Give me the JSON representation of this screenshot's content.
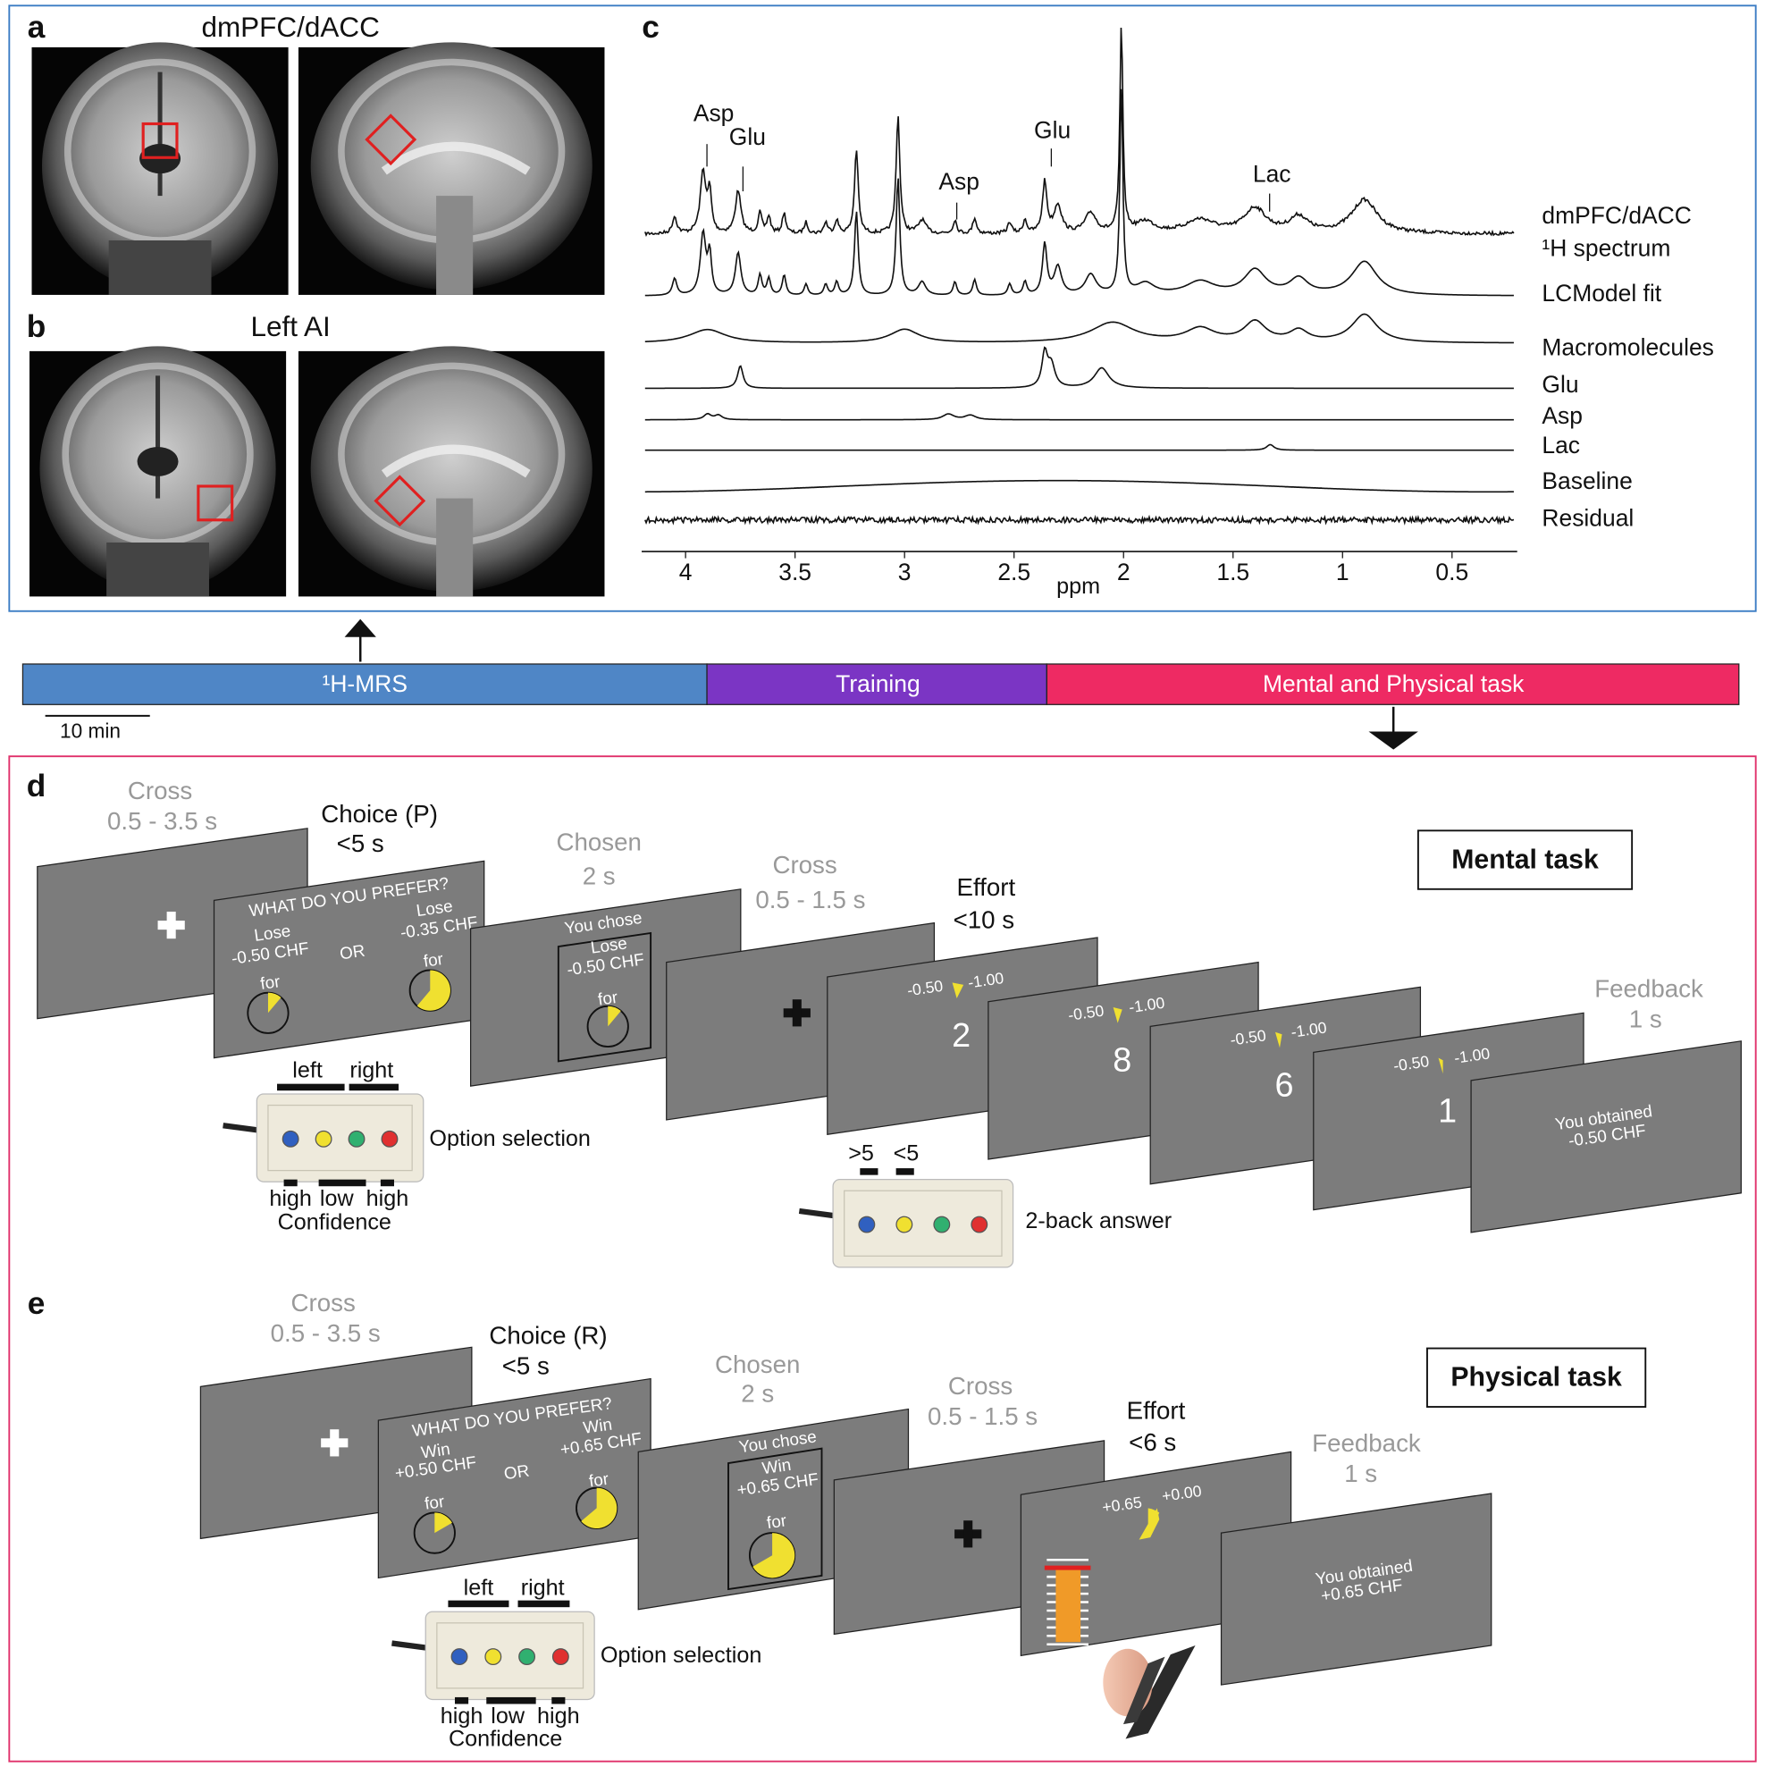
{
  "panel_a": {
    "letter": "a",
    "title": "dmPFC/dACC"
  },
  "panel_b": {
    "letter": "b",
    "title": "Left AI"
  },
  "panel_c": {
    "letter": "c",
    "peak_labels": [
      "Asp",
      "Glu",
      "Asp",
      "Glu",
      "Lac"
    ],
    "trace_labels": [
      "dmPFC/dACC",
      "¹H spectrum",
      "LCModel fit",
      "Macromolecules",
      "Glu",
      "Asp",
      "Lac",
      "Baseline",
      "Residual"
    ],
    "xticks": [
      4,
      3.5,
      3,
      2.5,
      2,
      1.5,
      1,
      0.5
    ],
    "xlabel": "ppm"
  },
  "timeline": {
    "segments": [
      "¹H-MRS",
      "Training",
      "Mental and Physical task"
    ],
    "scale_bar": "10 min"
  },
  "panel_d": {
    "letter": "d",
    "task": "Mental task",
    "stages": [
      [
        "Cross",
        "0.5 - 3.5 s"
      ],
      [
        "Choice (P)",
        "<5 s"
      ],
      [
        "Chosen",
        "2 s"
      ],
      [
        "Cross",
        "0.5 - 1.5 s"
      ],
      [
        "Effort",
        "<10 s"
      ],
      [
        "Feedback",
        "1 s"
      ]
    ],
    "choice": {
      "question": "WHAT DO YOU PREFER?",
      "left": [
        "Lose",
        "-0.50 CHF",
        "for"
      ],
      "or": "OR",
      "right": [
        "Lose",
        "-0.35 CHF",
        "for"
      ]
    },
    "chosen": [
      "You chose",
      "Lose",
      "-0.50 CHF",
      "for"
    ],
    "effort": {
      "scale": [
        "-0.50",
        "-1.00"
      ],
      "digits": [
        2,
        8,
        6,
        1
      ]
    },
    "feedback": [
      "You obtained",
      "-0.50 CHF"
    ],
    "pad": {
      "top": [
        "left",
        "right"
      ],
      "caption": "Option selection",
      "bottom": [
        "high",
        "low",
        "high"
      ],
      "bottom_caption": "Confidence"
    },
    "pad2": {
      "top": [
        ">5",
        "<5"
      ],
      "caption": "2-back answer"
    }
  },
  "panel_e": {
    "letter": "e",
    "task": "Physical task",
    "stages": [
      [
        "Cross",
        "0.5 - 3.5 s"
      ],
      [
        "Choice (R)",
        "<5 s"
      ],
      [
        "Chosen",
        "2 s"
      ],
      [
        "Cross",
        "0.5 - 1.5 s"
      ],
      [
        "Effort",
        "<6 s"
      ],
      [
        "Feedback",
        "1 s"
      ]
    ],
    "choice": {
      "question": "WHAT DO YOU PREFER?",
      "left": [
        "Win",
        "+0.50 CHF",
        "for"
      ],
      "or": "OR",
      "right": [
        "Win",
        "+0.65 CHF",
        "for"
      ]
    },
    "chosen": [
      "You chose",
      "Win",
      "+0.65 CHF",
      "for"
    ],
    "effort": {
      "scale": [
        "+0.65",
        "+0.00"
      ]
    },
    "feedback": [
      "You obtained",
      "+0.65 CHF"
    ],
    "pad": {
      "top": [
        "left",
        "right"
      ],
      "caption": "Option selection",
      "bottom": [
        "high",
        "low",
        "high"
      ],
      "bottom_caption": "Confidence"
    }
  }
}
